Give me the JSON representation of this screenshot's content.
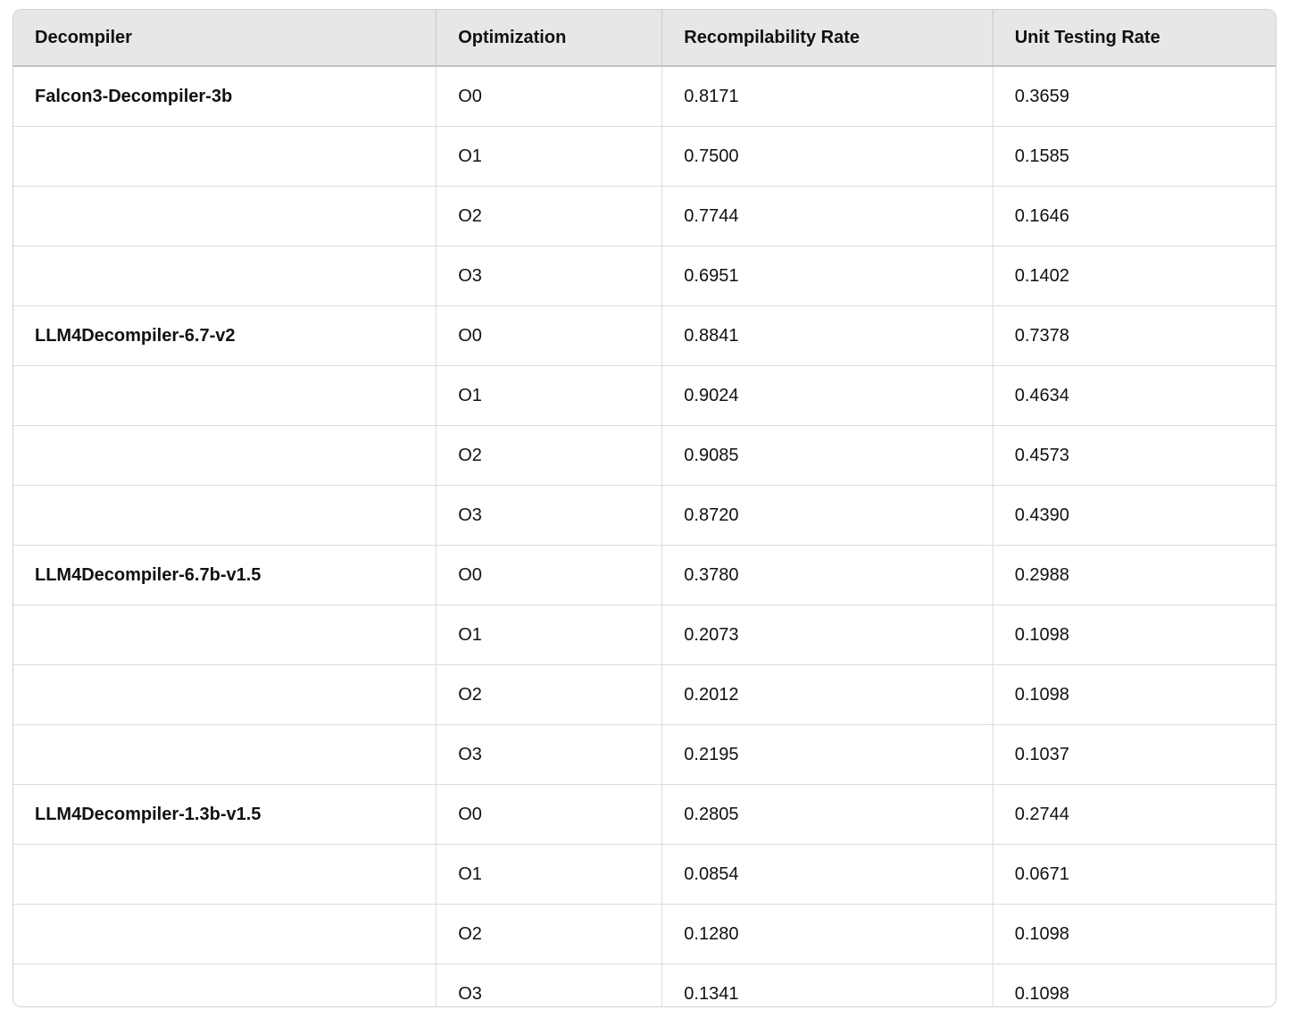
{
  "colors": {
    "header_bg": "#e7e7e8",
    "border_outer": "#d2d2d4",
    "border_row": "#dcdcde",
    "border_header_bottom": "#c3c3c5",
    "border_header_vert": "#c9c9cb",
    "text": "#111114",
    "bg": "#ffffff"
  },
  "table": {
    "columns": [
      {
        "key": "decompiler",
        "label": "Decompiler"
      },
      {
        "key": "optimization",
        "label": "Optimization"
      },
      {
        "key": "recompilability_rate",
        "label": "Recompilability Rate"
      },
      {
        "key": "unit_testing_rate",
        "label": "Unit Testing Rate"
      }
    ],
    "rows": [
      {
        "decompiler": "Falcon3-Decompiler-3b",
        "optimization": "O0",
        "recompilability_rate": "0.8171",
        "unit_testing_rate": "0.3659"
      },
      {
        "decompiler": "",
        "optimization": "O1",
        "recompilability_rate": "0.7500",
        "unit_testing_rate": "0.1585"
      },
      {
        "decompiler": "",
        "optimization": "O2",
        "recompilability_rate": "0.7744",
        "unit_testing_rate": "0.1646"
      },
      {
        "decompiler": "",
        "optimization": "O3",
        "recompilability_rate": "0.6951",
        "unit_testing_rate": "0.1402"
      },
      {
        "decompiler": "LLM4Decompiler-6.7-v2",
        "optimization": "O0",
        "recompilability_rate": "0.8841",
        "unit_testing_rate": "0.7378"
      },
      {
        "decompiler": "",
        "optimization": "O1",
        "recompilability_rate": "0.9024",
        "unit_testing_rate": "0.4634"
      },
      {
        "decompiler": "",
        "optimization": "O2",
        "recompilability_rate": "0.9085",
        "unit_testing_rate": "0.4573"
      },
      {
        "decompiler": "",
        "optimization": "O3",
        "recompilability_rate": "0.8720",
        "unit_testing_rate": "0.4390"
      },
      {
        "decompiler": "LLM4Decompiler-6.7b-v1.5",
        "optimization": "O0",
        "recompilability_rate": "0.3780",
        "unit_testing_rate": "0.2988"
      },
      {
        "decompiler": "",
        "optimization": "O1",
        "recompilability_rate": "0.2073",
        "unit_testing_rate": "0.1098"
      },
      {
        "decompiler": "",
        "optimization": "O2",
        "recompilability_rate": "0.2012",
        "unit_testing_rate": "0.1098"
      },
      {
        "decompiler": "",
        "optimization": "O3",
        "recompilability_rate": "0.2195",
        "unit_testing_rate": "0.1037"
      },
      {
        "decompiler": "LLM4Decompiler-1.3b-v1.5",
        "optimization": "O0",
        "recompilability_rate": "0.2805",
        "unit_testing_rate": "0.2744"
      },
      {
        "decompiler": "",
        "optimization": "O1",
        "recompilability_rate": "0.0854",
        "unit_testing_rate": "0.0671"
      },
      {
        "decompiler": "",
        "optimization": "O2",
        "recompilability_rate": "0.1280",
        "unit_testing_rate": "0.1098"
      },
      {
        "decompiler": "",
        "optimization": "O3",
        "recompilability_rate": "0.1341",
        "unit_testing_rate": "0.1098"
      }
    ]
  }
}
